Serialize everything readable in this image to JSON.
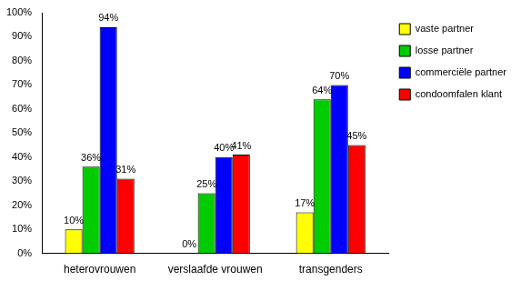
{
  "chart_data": {
    "type": "bar",
    "categories": [
      "heterovrouwen",
      "verslaafde vrouwen",
      "transgenders"
    ],
    "series": [
      {
        "name": "vaste partner",
        "color": "#ffff00",
        "values": [
          10,
          0,
          17
        ],
        "value_labels": [
          "10%",
          "0%",
          "17%"
        ]
      },
      {
        "name": "losse partner",
        "color": "#00cc00",
        "values": [
          36,
          25,
          64
        ],
        "value_labels": [
          "36%",
          "25%",
          "64%"
        ]
      },
      {
        "name": "commerciële partner",
        "color": "#0000ff",
        "values": [
          94,
          40,
          70
        ],
        "value_labels": [
          "94%",
          "40%",
          "70%"
        ]
      },
      {
        "name": "condoomfalen klant",
        "color": "#ff0000",
        "values": [
          31,
          41,
          45
        ],
        "value_labels": [
          "31%",
          "41%",
          "45%"
        ]
      }
    ],
    "ylim": [
      0,
      100
    ],
    "yticks": [
      {
        "value": 0,
        "label": "0%"
      },
      {
        "value": 10,
        "label": "10%"
      },
      {
        "value": 20,
        "label": "20%"
      },
      {
        "value": 30,
        "label": "30%"
      },
      {
        "value": 40,
        "label": "40%"
      },
      {
        "value": 50,
        "label": "50%"
      },
      {
        "value": 60,
        "label": "60%"
      },
      {
        "value": 70,
        "label": "70%"
      },
      {
        "value": 80,
        "label": "80%"
      },
      {
        "value": 90,
        "label": "90%"
      },
      {
        "value": 100,
        "label": "100%"
      }
    ],
    "grid": false,
    "legend": "right",
    "data_labels": true
  }
}
